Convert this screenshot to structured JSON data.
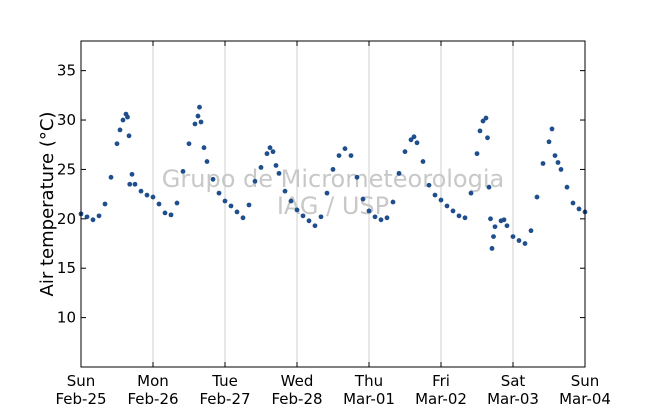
{
  "chart_data": {
    "type": "scatter",
    "title": "",
    "xlabel": "",
    "ylabel": "Air temperature (°C)",
    "xlim": [
      "2018-02-25 00:00",
      "2018-03-04 00:00"
    ],
    "ylim": [
      5,
      38
    ],
    "yticks": [
      10,
      15,
      20,
      25,
      30,
      35
    ],
    "xticks": [
      {
        "x": "2018-02-25",
        "day": "Sun",
        "date": "Feb-25"
      },
      {
        "x": "2018-02-26",
        "day": "Mon",
        "date": "Feb-26"
      },
      {
        "x": "2018-02-27",
        "day": "Tue",
        "date": "Feb-27"
      },
      {
        "x": "2018-02-28",
        "day": "Wed",
        "date": "Feb-28"
      },
      {
        "x": "2018-03-01",
        "day": "Thu",
        "date": "Mar-01"
      },
      {
        "x": "2018-03-02",
        "day": "Fri",
        "date": "Mar-02"
      },
      {
        "x": "2018-03-03",
        "day": "Sat",
        "date": "Mar-03"
      },
      {
        "x": "2018-03-04",
        "day": "Sun",
        "date": "Mar-04"
      }
    ],
    "grid": "vertical",
    "marker_color": "#1f4e8c",
    "watermark": [
      "Grupo de Micrometeorologia",
      "IAG / USP"
    ],
    "series": [
      {
        "points": [
          [
            "2018-02-25 00:00",
            20.5
          ],
          [
            "2018-02-25 02:00",
            20.2
          ],
          [
            "2018-02-25 04:00",
            19.9
          ],
          [
            "2018-02-25 06:00",
            20.3
          ],
          [
            "2018-02-25 08:00",
            21.5
          ],
          [
            "2018-02-25 10:00",
            24.2
          ],
          [
            "2018-02-25 12:00",
            27.6
          ],
          [
            "2018-02-25 13:00",
            29.0
          ],
          [
            "2018-02-25 14:00",
            30.0
          ],
          [
            "2018-02-25 15:00",
            30.6
          ],
          [
            "2018-02-25 15:30",
            30.3
          ],
          [
            "2018-02-25 16:00",
            28.4
          ],
          [
            "2018-02-25 16:15",
            23.5
          ],
          [
            "2018-02-25 17:00",
            24.5
          ],
          [
            "2018-02-25 18:00",
            23.5
          ],
          [
            "2018-02-25 20:00",
            22.8
          ],
          [
            "2018-02-25 22:00",
            22.4
          ],
          [
            "2018-02-26 00:00",
            22.2
          ],
          [
            "2018-02-26 02:00",
            21.5
          ],
          [
            "2018-02-26 04:00",
            20.6
          ],
          [
            "2018-02-26 06:00",
            20.4
          ],
          [
            "2018-02-26 08:00",
            21.6
          ],
          [
            "2018-02-26 10:00",
            24.8
          ],
          [
            "2018-02-26 12:00",
            27.6
          ],
          [
            "2018-02-26 14:00",
            29.6
          ],
          [
            "2018-02-26 15:00",
            30.4
          ],
          [
            "2018-02-26 15:30",
            31.3
          ],
          [
            "2018-02-26 16:00",
            29.8
          ],
          [
            "2018-02-26 17:00",
            27.2
          ],
          [
            "2018-02-26 18:00",
            25.8
          ],
          [
            "2018-02-26 20:00",
            24.0
          ],
          [
            "2018-02-26 22:00",
            22.6
          ],
          [
            "2018-02-27 00:00",
            21.8
          ],
          [
            "2018-02-27 02:00",
            21.3
          ],
          [
            "2018-02-27 04:00",
            20.7
          ],
          [
            "2018-02-27 06:00",
            20.1
          ],
          [
            "2018-02-27 08:00",
            21.4
          ],
          [
            "2018-02-27 10:00",
            23.8
          ],
          [
            "2018-02-27 12:00",
            25.2
          ],
          [
            "2018-02-27 14:00",
            26.6
          ],
          [
            "2018-02-27 15:00",
            27.2
          ],
          [
            "2018-02-27 16:00",
            26.8
          ],
          [
            "2018-02-27 17:00",
            25.4
          ],
          [
            "2018-02-27 18:00",
            24.6
          ],
          [
            "2018-02-27 20:00",
            22.8
          ],
          [
            "2018-02-27 22:00",
            21.8
          ],
          [
            "2018-02-28 00:00",
            20.9
          ],
          [
            "2018-02-28 02:00",
            20.3
          ],
          [
            "2018-02-28 04:00",
            19.8
          ],
          [
            "2018-02-28 06:00",
            19.3
          ],
          [
            "2018-02-28 08:00",
            20.2
          ],
          [
            "2018-02-28 10:00",
            22.6
          ],
          [
            "2018-02-28 12:00",
            25.0
          ],
          [
            "2018-02-28 14:00",
            26.4
          ],
          [
            "2018-02-28 16:00",
            27.1
          ],
          [
            "2018-02-28 18:00",
            26.4
          ],
          [
            "2018-02-28 20:00",
            24.2
          ],
          [
            "2018-02-28 22:00",
            22.0
          ],
          [
            "2018-03-01 00:00",
            20.8
          ],
          [
            "2018-03-01 02:00",
            20.2
          ],
          [
            "2018-03-01 04:00",
            19.9
          ],
          [
            "2018-03-01 06:00",
            20.1
          ],
          [
            "2018-03-01 08:00",
            21.7
          ],
          [
            "2018-03-01 10:00",
            24.6
          ],
          [
            "2018-03-01 12:00",
            26.8
          ],
          [
            "2018-03-01 14:00",
            28.0
          ],
          [
            "2018-03-01 15:00",
            28.3
          ],
          [
            "2018-03-01 16:00",
            27.7
          ],
          [
            "2018-03-01 18:00",
            25.8
          ],
          [
            "2018-03-01 20:00",
            23.4
          ],
          [
            "2018-03-01 22:00",
            22.4
          ],
          [
            "2018-03-02 00:00",
            21.9
          ],
          [
            "2018-03-02 02:00",
            21.3
          ],
          [
            "2018-03-02 04:00",
            20.8
          ],
          [
            "2018-03-02 06:00",
            20.3
          ],
          [
            "2018-03-02 08:00",
            20.1
          ],
          [
            "2018-03-02 10:00",
            22.6
          ],
          [
            "2018-03-02 12:00",
            26.6
          ],
          [
            "2018-03-02 13:00",
            28.9
          ],
          [
            "2018-03-02 14:00",
            29.9
          ],
          [
            "2018-03-02 15:00",
            30.2
          ],
          [
            "2018-03-02 15:30",
            28.2
          ],
          [
            "2018-03-02 16:00",
            23.2
          ],
          [
            "2018-03-02 16:30",
            20.0
          ],
          [
            "2018-03-02 17:00",
            17.0
          ],
          [
            "2018-03-02 17:30",
            18.2
          ],
          [
            "2018-03-02 18:00",
            19.2
          ],
          [
            "2018-03-02 20:00",
            19.8
          ],
          [
            "2018-03-02 21:00",
            19.9
          ],
          [
            "2018-03-02 22:00",
            19.3
          ],
          [
            "2018-03-03 00:00",
            18.2
          ],
          [
            "2018-03-03 02:00",
            17.8
          ],
          [
            "2018-03-03 04:00",
            17.5
          ],
          [
            "2018-03-03 06:00",
            18.8
          ],
          [
            "2018-03-03 08:00",
            22.2
          ],
          [
            "2018-03-03 10:00",
            25.6
          ],
          [
            "2018-03-03 12:00",
            27.8
          ],
          [
            "2018-03-03 13:00",
            29.1
          ],
          [
            "2018-03-03 14:00",
            26.4
          ],
          [
            "2018-03-03 15:00",
            25.7
          ],
          [
            "2018-03-03 16:00",
            25.0
          ],
          [
            "2018-03-03 18:00",
            23.2
          ],
          [
            "2018-03-03 20:00",
            21.6
          ],
          [
            "2018-03-03 22:00",
            21.0
          ],
          [
            "2018-03-04 00:00",
            20.7
          ]
        ]
      }
    ]
  }
}
